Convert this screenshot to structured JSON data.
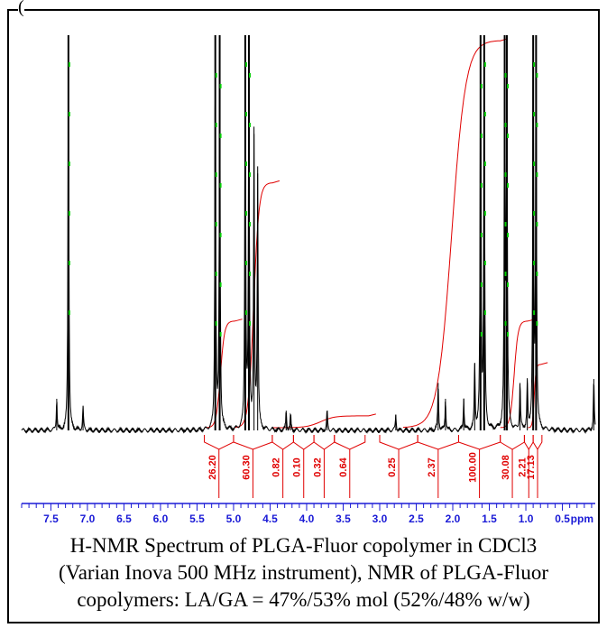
{
  "top_fragment": "(",
  "caption": {
    "line1": "H-NMR Spectrum of PLGA-Fluor copolymer in CDCl3",
    "line2": "(Varian Inova 500 MHz instrument), NMR of PLGA-Fluor",
    "line3": "copolymers: LA/GA = 47%/53% mol (52%/48% w/w)"
  },
  "colors": {
    "spectrum": "#000000",
    "integral": "#e00000",
    "peak_marker": "#00cc00",
    "axis": "#1a1ad6"
  },
  "chart_data": {
    "type": "line",
    "title": "",
    "xlabel": "ppm",
    "ylabel": "",
    "x_unit": "ppm",
    "xlim": [
      7.9,
      0.05
    ],
    "x_reversed": true,
    "grid": false,
    "tick_labels": [
      "7.5",
      "7.0",
      "6.5",
      "6.0",
      "5.5",
      "5.0",
      "4.5",
      "4.0",
      "3.5",
      "3.0",
      "2.5",
      "2.0",
      "1.5",
      "1.0",
      "0.5"
    ],
    "peaks": [
      {
        "ppm": 7.42,
        "height": 0.08
      },
      {
        "ppm": 7.26,
        "height": 1.0
      },
      {
        "ppm": 7.06,
        "height": 0.06
      },
      {
        "ppm": 5.25,
        "height": 1.0
      },
      {
        "ppm": 5.19,
        "height": 1.0
      },
      {
        "ppm": 4.84,
        "height": 1.0
      },
      {
        "ppm": 4.79,
        "height": 1.0
      },
      {
        "ppm": 4.72,
        "height": 0.75
      },
      {
        "ppm": 4.67,
        "height": 0.65
      },
      {
        "ppm": 4.28,
        "height": 0.05
      },
      {
        "ppm": 4.22,
        "height": 0.04
      },
      {
        "ppm": 3.72,
        "height": 0.05
      },
      {
        "ppm": 2.78,
        "height": 0.04
      },
      {
        "ppm": 2.2,
        "height": 0.12
      },
      {
        "ppm": 2.1,
        "height": 0.08
      },
      {
        "ppm": 1.85,
        "height": 0.08
      },
      {
        "ppm": 1.7,
        "height": 0.17
      },
      {
        "ppm": 1.62,
        "height": 1.0
      },
      {
        "ppm": 1.57,
        "height": 1.0
      },
      {
        "ppm": 1.29,
        "height": 1.0
      },
      {
        "ppm": 1.26,
        "height": 1.0
      },
      {
        "ppm": 1.08,
        "height": 0.12
      },
      {
        "ppm": 0.98,
        "height": 0.12
      },
      {
        "ppm": 0.9,
        "height": 1.0
      },
      {
        "ppm": 0.86,
        "height": 1.0
      },
      {
        "ppm": 0.07,
        "height": 0.13
      }
    ],
    "integral_curves": [
      {
        "from": 5.38,
        "to": 4.98,
        "rise": 0.27
      },
      {
        "from": 4.98,
        "to": 4.47,
        "rise": 0.62
      },
      {
        "from": 4.47,
        "to": 3.15,
        "rise": 0.03
      },
      {
        "from": 2.68,
        "to": 1.35,
        "rise": 0.98
      },
      {
        "from": 1.35,
        "to": 0.97,
        "rise": 0.27
      },
      {
        "from": 0.97,
        "to": 0.8,
        "rise": 0.16
      }
    ],
    "integrals": [
      {
        "start": 5.4,
        "end": 5.0,
        "value": "26.20"
      },
      {
        "start": 5.0,
        "end": 4.47,
        "value": "60.30"
      },
      {
        "start": 4.47,
        "end": 4.18,
        "value": "0.82"
      },
      {
        "start": 4.18,
        "end": 3.9,
        "value": "0.10"
      },
      {
        "start": 3.9,
        "end": 3.62,
        "value": "0.32"
      },
      {
        "start": 3.62,
        "end": 3.2,
        "value": "0.64"
      },
      {
        "start": 3.0,
        "end": 2.48,
        "value": "0.25"
      },
      {
        "start": 2.48,
        "end": 1.92,
        "value": "2.37"
      },
      {
        "start": 1.92,
        "end": 1.35,
        "value": "100.00"
      },
      {
        "start": 1.35,
        "end": 1.02,
        "value": "30.08"
      },
      {
        "start": 1.02,
        "end": 0.9,
        "value": "2.21"
      },
      {
        "start": 0.9,
        "end": 0.78,
        "value": "17.13"
      }
    ]
  }
}
